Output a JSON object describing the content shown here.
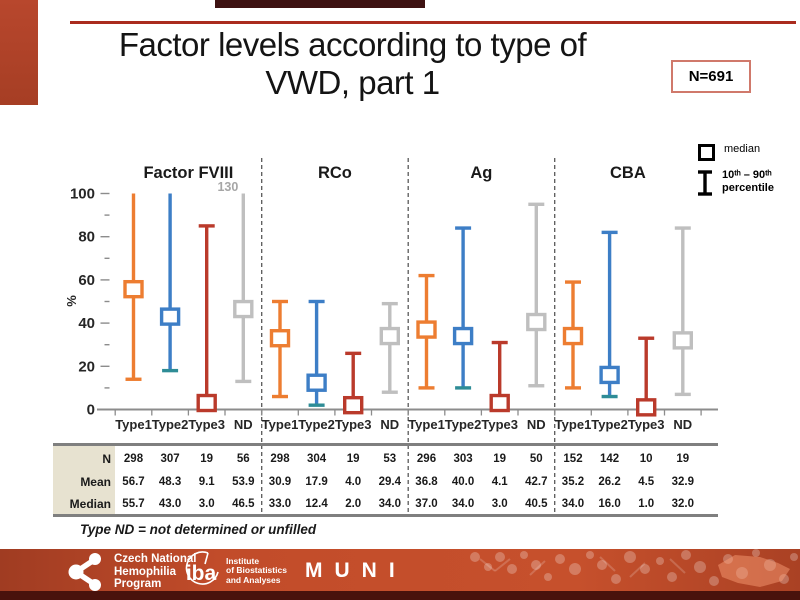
{
  "slide": {
    "title_line1": "Factor levels according to type of",
    "title_line2": "VWD, part 1",
    "n_badge": "N=691",
    "footnote": "Type ND = not determined or unfilled"
  },
  "legend": {
    "median_label": "median",
    "percentile_line1": "10ᵗʰ – 90ᵗʰ",
    "percentile_line2": "percentile"
  },
  "chart_data": {
    "type": "percentile-whisker",
    "ylabel": "%",
    "ylim": [
      0,
      100
    ],
    "yticks": [
      0,
      20,
      40,
      60,
      80,
      100
    ],
    "clip_max": 100,
    "categories": [
      "Type1",
      "Type2",
      "Type3",
      "ND"
    ],
    "category_colors": {
      "Type1": "#ED7D31",
      "Type2": "#3D7EC6",
      "Type3": "#BA3A2B",
      "ND": "#BFBFBF"
    },
    "type2_bottom_cap_color": "#2E8C96",
    "legend_note": "square = median, whisker = 10th-90th percentile",
    "groups": [
      {
        "name": "Factor FVIII",
        "points": [
          {
            "category": "Type1",
            "p10": 14,
            "median": 55.7,
            "p90": 100,
            "cap_top": false,
            "cap_bottom": true
          },
          {
            "category": "Type2",
            "p10": 18,
            "median": 43.0,
            "p90": 100,
            "cap_top": false,
            "cap_bottom": true
          },
          {
            "category": "Type3",
            "p10": 0,
            "median": 3.0,
            "p90": 85,
            "cap_top": true,
            "cap_bottom": false
          },
          {
            "category": "ND",
            "p10": 13,
            "median": 46.5,
            "p90": 130,
            "cap_top": false,
            "cap_bottom": true,
            "annotation": "130"
          }
        ]
      },
      {
        "name": "RCo",
        "points": [
          {
            "category": "Type1",
            "p10": 6,
            "median": 33.0,
            "p90": 50,
            "cap_top": true,
            "cap_bottom": true
          },
          {
            "category": "Type2",
            "p10": 2,
            "median": 12.4,
            "p90": 50,
            "cap_top": true,
            "cap_bottom": true
          },
          {
            "category": "Type3",
            "p10": 0,
            "median": 2.0,
            "p90": 26,
            "cap_top": true,
            "cap_bottom": false
          },
          {
            "category": "ND",
            "p10": 8,
            "median": 34.0,
            "p90": 49,
            "cap_top": true,
            "cap_bottom": true
          }
        ]
      },
      {
        "name": "Ag",
        "points": [
          {
            "category": "Type1",
            "p10": 10,
            "median": 37.0,
            "p90": 62,
            "cap_top": true,
            "cap_bottom": true
          },
          {
            "category": "Type2",
            "p10": 10,
            "median": 34.0,
            "p90": 84,
            "cap_top": true,
            "cap_bottom": true
          },
          {
            "category": "Type3",
            "p10": 0,
            "median": 3.0,
            "p90": 31,
            "cap_top": true,
            "cap_bottom": false
          },
          {
            "category": "ND",
            "p10": 11,
            "median": 40.5,
            "p90": 95,
            "cap_top": true,
            "cap_bottom": true
          }
        ]
      },
      {
        "name": "CBA",
        "points": [
          {
            "category": "Type1",
            "p10": 10,
            "median": 34.0,
            "p90": 59,
            "cap_top": true,
            "cap_bottom": true
          },
          {
            "category": "Type2",
            "p10": 6,
            "median": 16.0,
            "p90": 82,
            "cap_top": true,
            "cap_bottom": true
          },
          {
            "category": "Type3",
            "p10": 0,
            "median": 1.0,
            "p90": 33,
            "cap_top": true,
            "cap_bottom": false
          },
          {
            "category": "ND",
            "p10": 7,
            "median": 32.0,
            "p90": 84,
            "cap_top": true,
            "cap_bottom": true
          }
        ]
      }
    ]
  },
  "table": {
    "rows": [
      {
        "label": "N",
        "values": [
          [
            "298",
            "307",
            "19",
            "56"
          ],
          [
            "298",
            "304",
            "19",
            "53"
          ],
          [
            "296",
            "303",
            "19",
            "50"
          ],
          [
            "152",
            "142",
            "10",
            "19"
          ]
        ]
      },
      {
        "label": "Mean",
        "values": [
          [
            "56.7",
            "48.3",
            "9.1",
            "53.9"
          ],
          [
            "30.9",
            "17.9",
            "4.0",
            "29.4"
          ],
          [
            "36.8",
            "40.0",
            "4.1",
            "42.7"
          ],
          [
            "35.2",
            "26.2",
            "4.5",
            "32.9"
          ]
        ]
      },
      {
        "label": "Median",
        "values": [
          [
            "55.7",
            "43.0",
            "3.0",
            "46.5"
          ],
          [
            "33.0",
            "12.4",
            "2.0",
            "34.0"
          ],
          [
            "37.0",
            "34.0",
            "3.0",
            "40.5"
          ],
          [
            "34.0",
            "16.0",
            "1.0",
            "32.0"
          ]
        ]
      }
    ]
  },
  "footer": {
    "cnhp_line1": "Czech National",
    "cnhp_line2": "Hemophilia",
    "cnhp_line3": "Program",
    "iba": "iba",
    "iba_sub1": "Institute",
    "iba_sub2": "of Biostatistics",
    "iba_sub3": "and Analyses",
    "muni": "MUNI"
  },
  "colors": {
    "accent_rule": "#aa2b1e",
    "left_accent": "#b8472d",
    "footer_band": "#c24c2a",
    "footer_strip": "#49120c",
    "axis_gray": "#8c8c8c",
    "annotation_gray": "#a6a6a6"
  }
}
